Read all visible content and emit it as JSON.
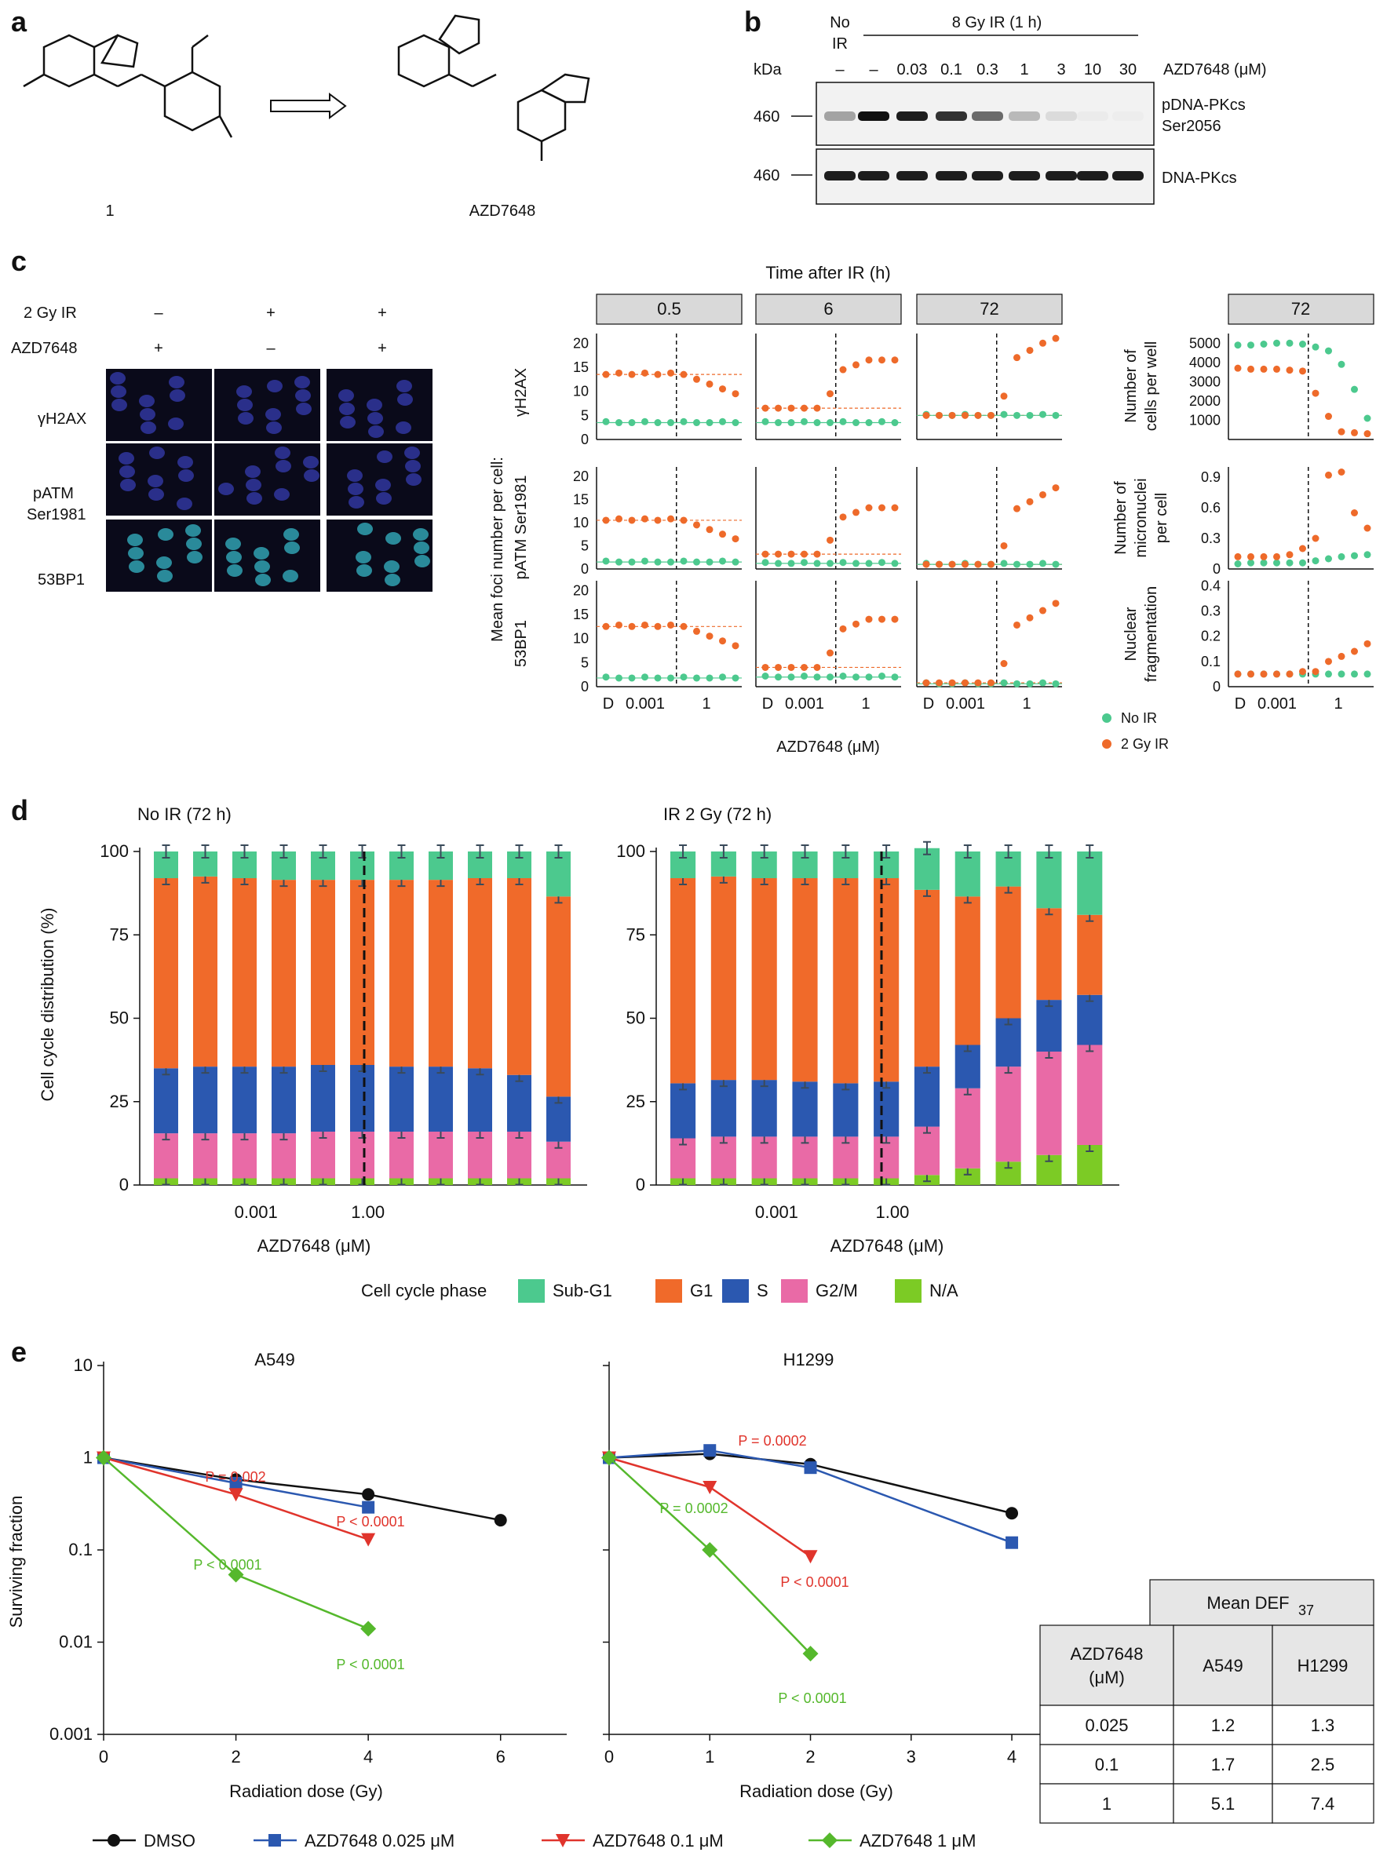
{
  "panels": {
    "a": "a",
    "b": "b",
    "c": "c",
    "d": "d",
    "e": "e"
  },
  "panel_a": {
    "compound1_label": "1",
    "compound2_label": "AZD7648"
  },
  "panel_b": {
    "col_no_ir": "No",
    "col_no_ir2": "IR",
    "header_ir": "8 Gy IR (1 h)",
    "kda_label": "kDa",
    "lanes": [
      "–",
      "–",
      "0.03",
      "0.1",
      "0.3",
      "1",
      "3",
      "10",
      "30"
    ],
    "drug_label": "AZD7648 (μM)",
    "band1_mw": "460",
    "band2_mw": "460",
    "band1_label_1": "pDNA-PKcs",
    "band1_label_2": "Ser2056",
    "band2_label": "DNA-PKcs"
  },
  "panel_c": {
    "row_ir_label": "2 Gy IR",
    "row_drug_label": "AZD7648",
    "ir_signs": [
      "–",
      "+",
      "+"
    ],
    "drug_signs": [
      "+",
      "–",
      "+"
    ],
    "stain_labels": [
      "γH2AX",
      "pATM",
      "Ser1981",
      "53BP1"
    ],
    "time_title": "Time after IR (h)",
    "time_headers": [
      "0.5",
      "6",
      "72"
    ],
    "right_header": "72",
    "ylabel_main": "Mean foci number per cell:",
    "row_labels": [
      "γH2AX",
      "pATM Ser1981",
      "53BP1"
    ],
    "right_row_labels": [
      [
        "Number of",
        "cells per well"
      ],
      [
        "Number of",
        "micronuclei",
        "per cell"
      ],
      [
        "Nuclear",
        "fragmentation"
      ]
    ],
    "x_ticks": [
      "D",
      "0.001",
      "1"
    ],
    "xlabel": "AZD7648 (μM)",
    "legend": [
      {
        "name": "No IR",
        "color": "#4cc98e"
      },
      {
        "name": "2 Gy IR",
        "color": "#ee6a2a"
      }
    ]
  },
  "panel_d": {
    "title_left": "No IR (72 h)",
    "title_right": "IR 2 Gy (72 h)",
    "ylabel": "Cell cycle distribution (%)",
    "xlabel": "AZD7648 (μM)",
    "x_ticks": [
      "0.001",
      "1.00"
    ],
    "legend_title": "Cell cycle phase",
    "legend": [
      "Sub-G1",
      "G1",
      "S",
      "G2/M",
      "N/A"
    ],
    "colors": {
      "Sub-G1": "#4cc98e",
      "G1": "#f06a2a",
      "S": "#2b58b0",
      "G2/M": "#e96aa6",
      "N/A": "#7ccb25"
    }
  },
  "panel_e": {
    "title_left": "A549",
    "title_right": "H1299",
    "ylabel": "Surviving fraction",
    "xlabel": "Radiation dose (Gy)",
    "pvalues_left": [
      "P = 0.002",
      "P < 0.0001",
      "P < 0.0001",
      "P < 0.0001"
    ],
    "pvalues_right": [
      "P = 0.0002",
      "P = 0.0002",
      "P < 0.0001",
      "P < 0.0001"
    ],
    "legend": [
      {
        "name": "DMSO",
        "color": "#111111"
      },
      {
        "name": "AZD7648 0.025 μM",
        "color": "#2b58b0"
      },
      {
        "name": "AZD7648 0.1 μM",
        "color": "#e0342c"
      },
      {
        "name": "AZD7648 1 μM",
        "color": "#55b82c"
      }
    ],
    "table": {
      "header_top": "Mean DEF",
      "header_sub": "37",
      "col0_1": "AZD7648",
      "col0_2": "(μM)",
      "cols": [
        "A549",
        "H1299"
      ],
      "rows": [
        [
          "0.025",
          "1.2",
          "1.3"
        ],
        [
          "0.1",
          "1.7",
          "2.5"
        ],
        [
          "1",
          "5.1",
          "7.4"
        ]
      ]
    }
  },
  "chart_data": [
    {
      "type": "bar",
      "title": "No IR (72 h)",
      "xlabel": "AZD7648 (μM)",
      "ylabel": "Cell cycle distribution (%)",
      "ylim": [
        0,
        100
      ],
      "stacked": true,
      "categories": [
        "c1",
        "c2",
        "c3",
        "c4",
        "c5",
        "c6",
        "c7",
        "c8",
        "c9",
        "c10",
        "c11"
      ],
      "series": [
        {
          "name": "N/A",
          "values": [
            2,
            2,
            2,
            2,
            2,
            2,
            2,
            2,
            2,
            2,
            2
          ]
        },
        {
          "name": "G2/M",
          "values": [
            13.5,
            13.5,
            13.5,
            13.5,
            14,
            14,
            14,
            14,
            14,
            14,
            11
          ]
        },
        {
          "name": "S",
          "values": [
            19.5,
            20,
            20,
            20,
            20,
            20,
            19.5,
            19.5,
            19,
            17,
            13.5
          ]
        },
        {
          "name": "G1",
          "values": [
            57,
            57,
            56.5,
            56,
            55.5,
            55.5,
            56,
            56,
            57,
            59,
            60
          ]
        },
        {
          "name": "Sub-G1",
          "values": [
            8,
            7.5,
            8,
            8.5,
            8.5,
            8.5,
            8.5,
            8.5,
            8,
            8,
            13.5
          ]
        }
      ]
    },
    {
      "type": "bar",
      "title": "IR 2 Gy (72 h)",
      "xlabel": "AZD7648 (μM)",
      "ylabel": "Cell cycle distribution (%)",
      "ylim": [
        0,
        100
      ],
      "stacked": true,
      "categories": [
        "c1",
        "c2",
        "c3",
        "c4",
        "c5",
        "c6",
        "c7",
        "c8",
        "c9",
        "c10",
        "c11"
      ],
      "series": [
        {
          "name": "N/A",
          "values": [
            2,
            2,
            2,
            2,
            2,
            2,
            3,
            5,
            7,
            9,
            12
          ]
        },
        {
          "name": "G2/M",
          "values": [
            12,
            12.5,
            12.5,
            12.5,
            12.5,
            12.5,
            14.5,
            24,
            28.5,
            31,
            30
          ]
        },
        {
          "name": "S",
          "values": [
            16.5,
            17,
            17,
            16.5,
            16,
            16.5,
            18,
            13,
            14.5,
            15.5,
            15
          ]
        },
        {
          "name": "G1",
          "values": [
            61.5,
            61,
            60.5,
            61,
            61.5,
            61,
            53,
            44.5,
            39.5,
            27.5,
            24
          ]
        },
        {
          "name": "Sub-G1",
          "values": [
            8,
            7.5,
            8,
            8,
            8,
            8,
            12.5,
            13.5,
            10.5,
            17,
            19
          ]
        }
      ]
    },
    {
      "type": "line",
      "title": "A549",
      "xlabel": "Radiation dose (Gy)",
      "ylabel": "Surviving fraction",
      "yscale": "log",
      "xlim": [
        0,
        7
      ],
      "ylim": [
        0.001,
        10
      ],
      "series": [
        {
          "name": "DMSO",
          "x": [
            0,
            2,
            4,
            6
          ],
          "y": [
            1,
            0.58,
            0.4,
            0.21
          ]
        },
        {
          "name": "AZD7648 0.025 μM",
          "x": [
            0,
            2,
            4
          ],
          "y": [
            1,
            0.53,
            0.29
          ]
        },
        {
          "name": "AZD7648 0.1 μM",
          "x": [
            0,
            2,
            4
          ],
          "y": [
            1,
            0.4,
            0.13
          ]
        },
        {
          "name": "AZD7648 1 μM",
          "x": [
            0,
            2,
            4
          ],
          "y": [
            1,
            0.054,
            0.014
          ]
        }
      ]
    },
    {
      "type": "line",
      "title": "H1299",
      "xlabel": "Radiation dose (Gy)",
      "ylabel": "Surviving fraction",
      "yscale": "log",
      "xlim": [
        0,
        4.5
      ],
      "ylim": [
        0.001,
        10
      ],
      "series": [
        {
          "name": "DMSO",
          "x": [
            0,
            1,
            2,
            4
          ],
          "y": [
            1,
            1.1,
            0.85,
            0.25
          ]
        },
        {
          "name": "AZD7648 0.025 μM",
          "x": [
            0,
            1,
            2,
            4
          ],
          "y": [
            1,
            1.2,
            0.78,
            0.12
          ]
        },
        {
          "name": "AZD7648 0.1 μM",
          "x": [
            0,
            1,
            2
          ],
          "y": [
            1,
            0.48,
            0.085
          ]
        },
        {
          "name": "AZD7648 1 μM",
          "x": [
            0,
            1,
            2
          ],
          "y": [
            1,
            0.1,
            0.0075
          ]
        }
      ]
    }
  ]
}
